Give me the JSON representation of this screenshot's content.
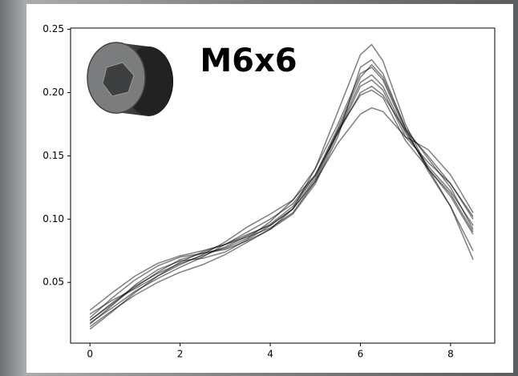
{
  "chart_data": {
    "type": "line",
    "annotation": "M6x6",
    "x": [
      0,
      0.5,
      1,
      1.5,
      2,
      2.5,
      3,
      3.5,
      4,
      4.5,
      5,
      5.5,
      6,
      6.25,
      6.5,
      7,
      7.5,
      8,
      8.5
    ],
    "series": [
      {
        "color": "#000000",
        "values": [
          0.02,
          0.034,
          0.047,
          0.057,
          0.065,
          0.071,
          0.078,
          0.087,
          0.096,
          0.11,
          0.134,
          0.17,
          0.208,
          0.214,
          0.205,
          0.168,
          0.142,
          0.122,
          0.095
        ]
      },
      {
        "color": "#000000",
        "values": [
          0.028,
          0.042,
          0.055,
          0.065,
          0.071,
          0.075,
          0.08,
          0.088,
          0.095,
          0.108,
          0.14,
          0.185,
          0.23,
          0.238,
          0.225,
          0.175,
          0.14,
          0.11,
          0.075
        ]
      },
      {
        "color": "#000000",
        "values": [
          0.015,
          0.028,
          0.04,
          0.05,
          0.058,
          0.064,
          0.072,
          0.082,
          0.092,
          0.108,
          0.13,
          0.16,
          0.183,
          0.188,
          0.185,
          0.165,
          0.155,
          0.135,
          0.105
        ]
      },
      {
        "color": "#000000",
        "values": [
          0.022,
          0.038,
          0.052,
          0.063,
          0.07,
          0.073,
          0.077,
          0.085,
          0.098,
          0.115,
          0.14,
          0.175,
          0.215,
          0.22,
          0.21,
          0.17,
          0.14,
          0.118,
          0.088
        ]
      },
      {
        "color": "#000000",
        "values": [
          0.018,
          0.03,
          0.043,
          0.053,
          0.062,
          0.07,
          0.08,
          0.09,
          0.1,
          0.112,
          0.135,
          0.168,
          0.2,
          0.205,
          0.198,
          0.17,
          0.15,
          0.128,
          0.1
        ]
      },
      {
        "color": "#000000",
        "values": [
          0.025,
          0.036,
          0.045,
          0.055,
          0.064,
          0.072,
          0.082,
          0.094,
          0.104,
          0.115,
          0.135,
          0.172,
          0.212,
          0.222,
          0.212,
          0.172,
          0.138,
          0.11,
          0.068
        ]
      },
      {
        "color": "#000000",
        "values": [
          0.013,
          0.027,
          0.042,
          0.055,
          0.066,
          0.074,
          0.08,
          0.086,
          0.093,
          0.105,
          0.13,
          0.168,
          0.205,
          0.21,
          0.202,
          0.165,
          0.145,
          0.128,
          0.102
        ]
      },
      {
        "color": "#000000",
        "values": [
          0.02,
          0.033,
          0.046,
          0.058,
          0.068,
          0.073,
          0.076,
          0.083,
          0.092,
          0.104,
          0.128,
          0.165,
          0.22,
          0.226,
          0.215,
          0.172,
          0.148,
          0.125,
          0.092
        ]
      },
      {
        "color": "#000000",
        "values": [
          0.017,
          0.032,
          0.048,
          0.06,
          0.067,
          0.069,
          0.074,
          0.084,
          0.095,
          0.108,
          0.132,
          0.17,
          0.198,
          0.202,
          0.196,
          0.162,
          0.14,
          0.12,
          0.09
        ]
      }
    ],
    "alpha": 0.5,
    "xlim": [
      -0.43,
      8.98
    ],
    "xticks": [
      0,
      2,
      4,
      6,
      8
    ],
    "ylim": [
      0.002,
      0.251
    ],
    "yticks": [
      0.05,
      {
        "value": 0.1,
        "label": "0.10"
      },
      0.15,
      {
        "value": 0.2,
        "label": "0.20"
      },
      0.25
    ]
  }
}
